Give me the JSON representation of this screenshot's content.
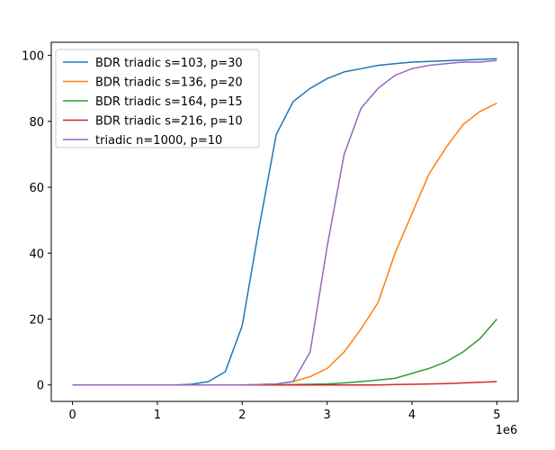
{
  "chart_data": {
    "type": "line",
    "x": [
      0,
      200000,
      400000,
      600000,
      800000,
      1000000,
      1200000,
      1400000,
      1600000,
      1800000,
      2000000,
      2200000,
      2400000,
      2600000,
      2800000,
      3000000,
      3200000,
      3400000,
      3600000,
      3800000,
      4000000,
      4200000,
      4400000,
      4600000,
      4800000,
      5000000
    ],
    "series": [
      {
        "name": "BDR triadic s=103, p=30",
        "color": "#1f77b4",
        "values": [
          0,
          0,
          0,
          0,
          0,
          0,
          0,
          0.2,
          1,
          4,
          18,
          48,
          76,
          86,
          90,
          93,
          95,
          96,
          97,
          97.5,
          98,
          98.2,
          98.4,
          98.6,
          98.8,
          99
        ]
      },
      {
        "name": "BDR triadic s=136, p=20",
        "color": "#ff7f0e",
        "values": [
          0,
          0,
          0,
          0,
          0,
          0,
          0,
          0,
          0,
          0,
          0,
          0.1,
          0.3,
          1,
          2.5,
          5,
          10,
          17,
          25,
          40,
          52,
          64,
          72,
          79,
          83,
          85.5
        ]
      },
      {
        "name": "BDR triadic s=164, p=15",
        "color": "#2ca02c",
        "values": [
          0,
          0,
          0,
          0,
          0,
          0,
          0,
          0,
          0,
          0,
          0,
          0,
          0,
          0.1,
          0.2,
          0.3,
          0.6,
          1,
          1.5,
          2,
          3.5,
          5,
          7,
          10,
          14,
          20
        ]
      },
      {
        "name": "BDR triadic s=216, p=10",
        "color": "#d62728",
        "values": [
          0,
          0,
          0,
          0,
          0,
          0,
          0,
          0,
          0,
          0,
          0,
          0,
          0,
          0,
          0,
          0,
          0,
          0,
          0,
          0.1,
          0.2,
          0.3,
          0.4,
          0.6,
          0.8,
          1
        ]
      },
      {
        "name": "triadic n=1000, p=10",
        "color": "#9467bd",
        "values": [
          0,
          0,
          0,
          0,
          0,
          0,
          0,
          0,
          0,
          0,
          0,
          0.1,
          0.3,
          1,
          10,
          42,
          70,
          84,
          90,
          94,
          96,
          97,
          97.5,
          98,
          98,
          98.5
        ]
      }
    ],
    "xlim": [
      -250000,
      5250000
    ],
    "xticks": [
      {
        "value": 0,
        "label": "0"
      },
      {
        "value": 1000000,
        "label": "1"
      },
      {
        "value": 2000000,
        "label": "2"
      },
      {
        "value": 3000000,
        "label": "3"
      },
      {
        "value": 4000000,
        "label": "4"
      },
      {
        "value": 5000000,
        "label": "5"
      }
    ],
    "x_offset_label": "1e6",
    "ylim": [
      -5,
      104
    ],
    "yticks": [
      0,
      20,
      40,
      60,
      80,
      100
    ],
    "legend": "upper left"
  }
}
